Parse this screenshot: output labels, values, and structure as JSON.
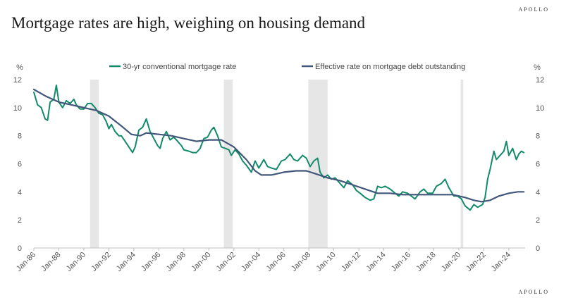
{
  "header": {
    "brand": "APOLLO",
    "title": "Mortgage rates are high, weighing on housing demand"
  },
  "footer": {
    "brand": "APOLLO"
  },
  "colors": {
    "mortgage_rate": "#138a6a",
    "effective_rate": "#41577a",
    "recession": "#e6e6e6",
    "axis": "#bfbfbf",
    "text": "#555555"
  },
  "chart_data": {
    "type": "line",
    "title": "Mortgage rates are high, weighing on housing demand",
    "yunit_left": "%",
    "yunit_right": "%",
    "ylim": [
      0,
      12
    ],
    "yticks": [
      0,
      2,
      4,
      6,
      8,
      10,
      12
    ],
    "xlim": [
      1986.0,
      2025.3
    ],
    "xticks": [
      "Jan-86",
      "Jan-88",
      "Jan-90",
      "Jan-92",
      "Jan-94",
      "Jan-96",
      "Jan-98",
      "Jan-00",
      "Jan-02",
      "Jan-04",
      "Jan-06",
      "Jan-08",
      "Jan-10",
      "Jan-12",
      "Jan-14",
      "Jan-16",
      "Jan-18",
      "Jan-20",
      "Jan-22",
      "Jan-24"
    ],
    "legend_position": "top",
    "grid": false,
    "recessions": [
      [
        1990.5,
        1991.2
      ],
      [
        2001.2,
        2001.9
      ],
      [
        2007.95,
        2009.5
      ],
      [
        2020.15,
        2020.35
      ]
    ],
    "series": [
      {
        "name": "30-yr conventional mortgage rate",
        "color": "#138a6a",
        "points": [
          [
            1986.0,
            11.1
          ],
          [
            1986.3,
            10.2
          ],
          [
            1986.6,
            10.0
          ],
          [
            1986.9,
            9.2
          ],
          [
            1987.1,
            9.1
          ],
          [
            1987.3,
            10.4
          ],
          [
            1987.6,
            10.6
          ],
          [
            1987.8,
            11.6
          ],
          [
            1988.0,
            10.4
          ],
          [
            1988.3,
            10.0
          ],
          [
            1988.6,
            10.5
          ],
          [
            1988.9,
            10.3
          ],
          [
            1989.2,
            10.6
          ],
          [
            1989.4,
            10.2
          ],
          [
            1989.7,
            9.9
          ],
          [
            1990.0,
            9.9
          ],
          [
            1990.3,
            10.3
          ],
          [
            1990.6,
            10.3
          ],
          [
            1990.9,
            10.0
          ],
          [
            1991.2,
            9.6
          ],
          [
            1991.5,
            9.5
          ],
          [
            1991.8,
            9.0
          ],
          [
            1992.0,
            8.5
          ],
          [
            1992.2,
            8.8
          ],
          [
            1992.5,
            8.3
          ],
          [
            1992.8,
            8.0
          ],
          [
            1993.0,
            8.0
          ],
          [
            1993.3,
            7.6
          ],
          [
            1993.6,
            7.2
          ],
          [
            1993.9,
            6.8
          ],
          [
            1994.1,
            7.2
          ],
          [
            1994.4,
            8.4
          ],
          [
            1994.7,
            8.6
          ],
          [
            1995.0,
            9.2
          ],
          [
            1995.3,
            8.3
          ],
          [
            1995.6,
            7.8
          ],
          [
            1995.9,
            7.3
          ],
          [
            1996.1,
            7.1
          ],
          [
            1996.3,
            7.8
          ],
          [
            1996.6,
            8.3
          ],
          [
            1996.9,
            7.7
          ],
          [
            1997.2,
            7.9
          ],
          [
            1997.5,
            7.6
          ],
          [
            1997.8,
            7.3
          ],
          [
            1998.0,
            7.0
          ],
          [
            1998.4,
            6.9
          ],
          [
            1998.7,
            6.8
          ],
          [
            1999.0,
            6.8
          ],
          [
            1999.3,
            7.1
          ],
          [
            1999.6,
            7.8
          ],
          [
            1999.9,
            7.9
          ],
          [
            2000.2,
            8.4
          ],
          [
            2000.4,
            8.6
          ],
          [
            2000.7,
            8.0
          ],
          [
            2001.0,
            7.2
          ],
          [
            2001.3,
            7.1
          ],
          [
            2001.6,
            7.0
          ],
          [
            2001.8,
            6.6
          ],
          [
            2002.1,
            7.0
          ],
          [
            2002.4,
            6.7
          ],
          [
            2002.7,
            6.2
          ],
          [
            2003.0,
            5.9
          ],
          [
            2003.4,
            5.4
          ],
          [
            2003.7,
            6.2
          ],
          [
            2004.0,
            5.7
          ],
          [
            2004.4,
            6.3
          ],
          [
            2004.7,
            5.8
          ],
          [
            2005.0,
            5.7
          ],
          [
            2005.4,
            5.6
          ],
          [
            2005.8,
            6.2
          ],
          [
            2006.1,
            6.3
          ],
          [
            2006.5,
            6.7
          ],
          [
            2006.8,
            6.3
          ],
          [
            2007.1,
            6.2
          ],
          [
            2007.5,
            6.6
          ],
          [
            2007.8,
            6.4
          ],
          [
            2008.1,
            5.8
          ],
          [
            2008.4,
            6.2
          ],
          [
            2008.7,
            6.4
          ],
          [
            2008.9,
            5.4
          ],
          [
            2009.2,
            5.0
          ],
          [
            2009.5,
            5.2
          ],
          [
            2009.8,
            4.9
          ],
          [
            2010.1,
            5.0
          ],
          [
            2010.5,
            4.6
          ],
          [
            2010.8,
            4.3
          ],
          [
            2011.1,
            4.8
          ],
          [
            2011.5,
            4.5
          ],
          [
            2011.8,
            4.1
          ],
          [
            2012.1,
            3.9
          ],
          [
            2012.5,
            3.6
          ],
          [
            2012.9,
            3.4
          ],
          [
            2013.2,
            3.5
          ],
          [
            2013.5,
            4.4
          ],
          [
            2013.8,
            4.3
          ],
          [
            2014.1,
            4.4
          ],
          [
            2014.5,
            4.2
          ],
          [
            2014.9,
            3.9
          ],
          [
            2015.2,
            3.7
          ],
          [
            2015.5,
            4.0
          ],
          [
            2015.9,
            3.9
          ],
          [
            2016.2,
            3.7
          ],
          [
            2016.5,
            3.5
          ],
          [
            2016.9,
            4.0
          ],
          [
            2017.2,
            4.2
          ],
          [
            2017.5,
            3.9
          ],
          [
            2017.9,
            3.9
          ],
          [
            2018.2,
            4.4
          ],
          [
            2018.6,
            4.6
          ],
          [
            2018.9,
            4.9
          ],
          [
            2019.2,
            4.3
          ],
          [
            2019.6,
            3.7
          ],
          [
            2019.9,
            3.7
          ],
          [
            2020.2,
            3.5
          ],
          [
            2020.5,
            3.0
          ],
          [
            2020.9,
            2.7
          ],
          [
            2021.2,
            3.1
          ],
          [
            2021.5,
            2.9
          ],
          [
            2021.9,
            3.1
          ],
          [
            2022.1,
            3.6
          ],
          [
            2022.3,
            4.9
          ],
          [
            2022.5,
            5.6
          ],
          [
            2022.8,
            6.9
          ],
          [
            2023.0,
            6.3
          ],
          [
            2023.3,
            6.6
          ],
          [
            2023.6,
            6.9
          ],
          [
            2023.8,
            7.6
          ],
          [
            2024.0,
            6.6
          ],
          [
            2024.3,
            7.1
          ],
          [
            2024.6,
            6.3
          ],
          [
            2024.8,
            6.7
          ],
          [
            2025.0,
            6.9
          ],
          [
            2025.2,
            6.8
          ]
        ]
      },
      {
        "name": "Effective rate on mortgage debt outstanding",
        "color": "#41577a",
        "points": [
          [
            1986.0,
            11.3
          ],
          [
            1987.0,
            10.8
          ],
          [
            1988.0,
            10.4
          ],
          [
            1989.0,
            10.2
          ],
          [
            1990.0,
            10.0
          ],
          [
            1991.0,
            9.8
          ],
          [
            1992.0,
            9.4
          ],
          [
            1993.0,
            8.7
          ],
          [
            1993.8,
            8.1
          ],
          [
            1994.5,
            8.0
          ],
          [
            1995.0,
            8.2
          ],
          [
            1996.0,
            8.1
          ],
          [
            1997.0,
            8.0
          ],
          [
            1998.0,
            7.8
          ],
          [
            1999.0,
            7.6
          ],
          [
            2000.0,
            7.7
          ],
          [
            2001.0,
            7.7
          ],
          [
            2002.0,
            7.2
          ],
          [
            2003.0,
            6.3
          ],
          [
            2003.7,
            5.5
          ],
          [
            2004.2,
            5.2
          ],
          [
            2005.0,
            5.2
          ],
          [
            2006.0,
            5.4
          ],
          [
            2007.0,
            5.5
          ],
          [
            2007.8,
            5.5
          ],
          [
            2008.5,
            5.3
          ],
          [
            2009.5,
            5.0
          ],
          [
            2010.5,
            4.8
          ],
          [
            2011.5,
            4.5
          ],
          [
            2012.5,
            4.2
          ],
          [
            2013.5,
            3.9
          ],
          [
            2014.5,
            3.9
          ],
          [
            2015.5,
            3.8
          ],
          [
            2016.5,
            3.8
          ],
          [
            2017.5,
            3.8
          ],
          [
            2018.5,
            3.8
          ],
          [
            2019.5,
            3.8
          ],
          [
            2020.5,
            3.6
          ],
          [
            2021.2,
            3.4
          ],
          [
            2021.8,
            3.3
          ],
          [
            2022.5,
            3.4
          ],
          [
            2023.2,
            3.7
          ],
          [
            2024.0,
            3.9
          ],
          [
            2024.7,
            4.0
          ],
          [
            2025.2,
            4.0
          ]
        ]
      }
    ]
  }
}
